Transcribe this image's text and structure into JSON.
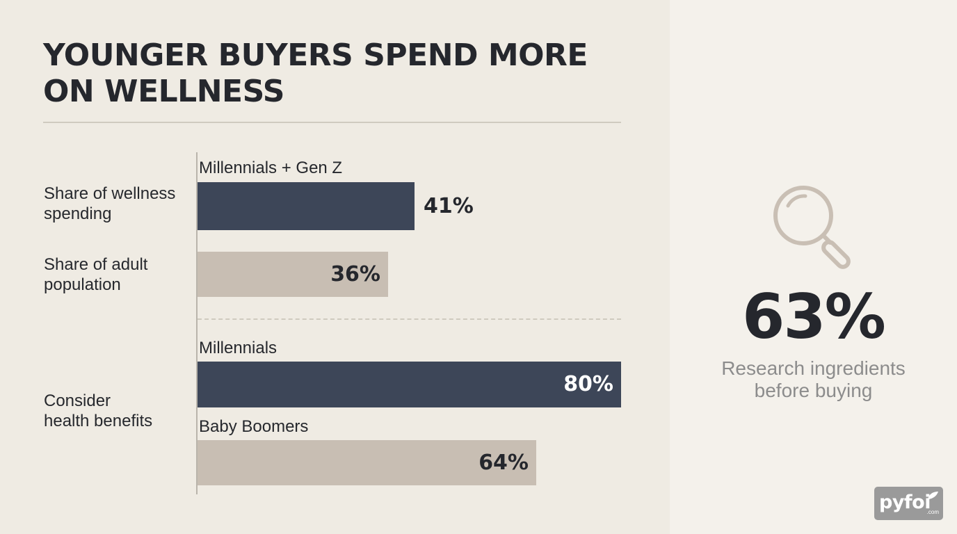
{
  "title": "YOUNGER BUYERS SPEND MORE ON WELLNESS",
  "chart_data": {
    "type": "bar",
    "orientation": "horizontal",
    "title": "YOUNGER BUYERS SPEND MORE ON WELLNESS",
    "xlim": [
      0,
      80
    ],
    "groups": [
      {
        "bars": [
          {
            "row_label": [
              "Share of wellness",
              "spending"
            ],
            "series_label": "Millennials + Gen Z",
            "value": 41,
            "value_label": "41%",
            "style": "dark"
          },
          {
            "row_label": [
              "Share of adult",
              "population"
            ],
            "series_label": "",
            "value": 36,
            "value_label": "36%",
            "style": "light"
          }
        ]
      },
      {
        "row_label": [
          "Consider",
          "health benefits"
        ],
        "bars": [
          {
            "series_label": "Millennials",
            "value": 80,
            "value_label": "80%",
            "style": "dark"
          },
          {
            "series_label": "Baby Boomers",
            "value": 64,
            "value_label": "64%",
            "style": "light"
          }
        ]
      }
    ],
    "colors": {
      "dark": "#3d4658",
      "light": "#c8beb3"
    }
  },
  "stat": {
    "icon": "magnifying-glass-icon",
    "value": "63%",
    "caption_lines": [
      "Research ingredients",
      "before buying"
    ]
  },
  "logo": {
    "text": "pyfoi",
    "sub": ".com"
  }
}
